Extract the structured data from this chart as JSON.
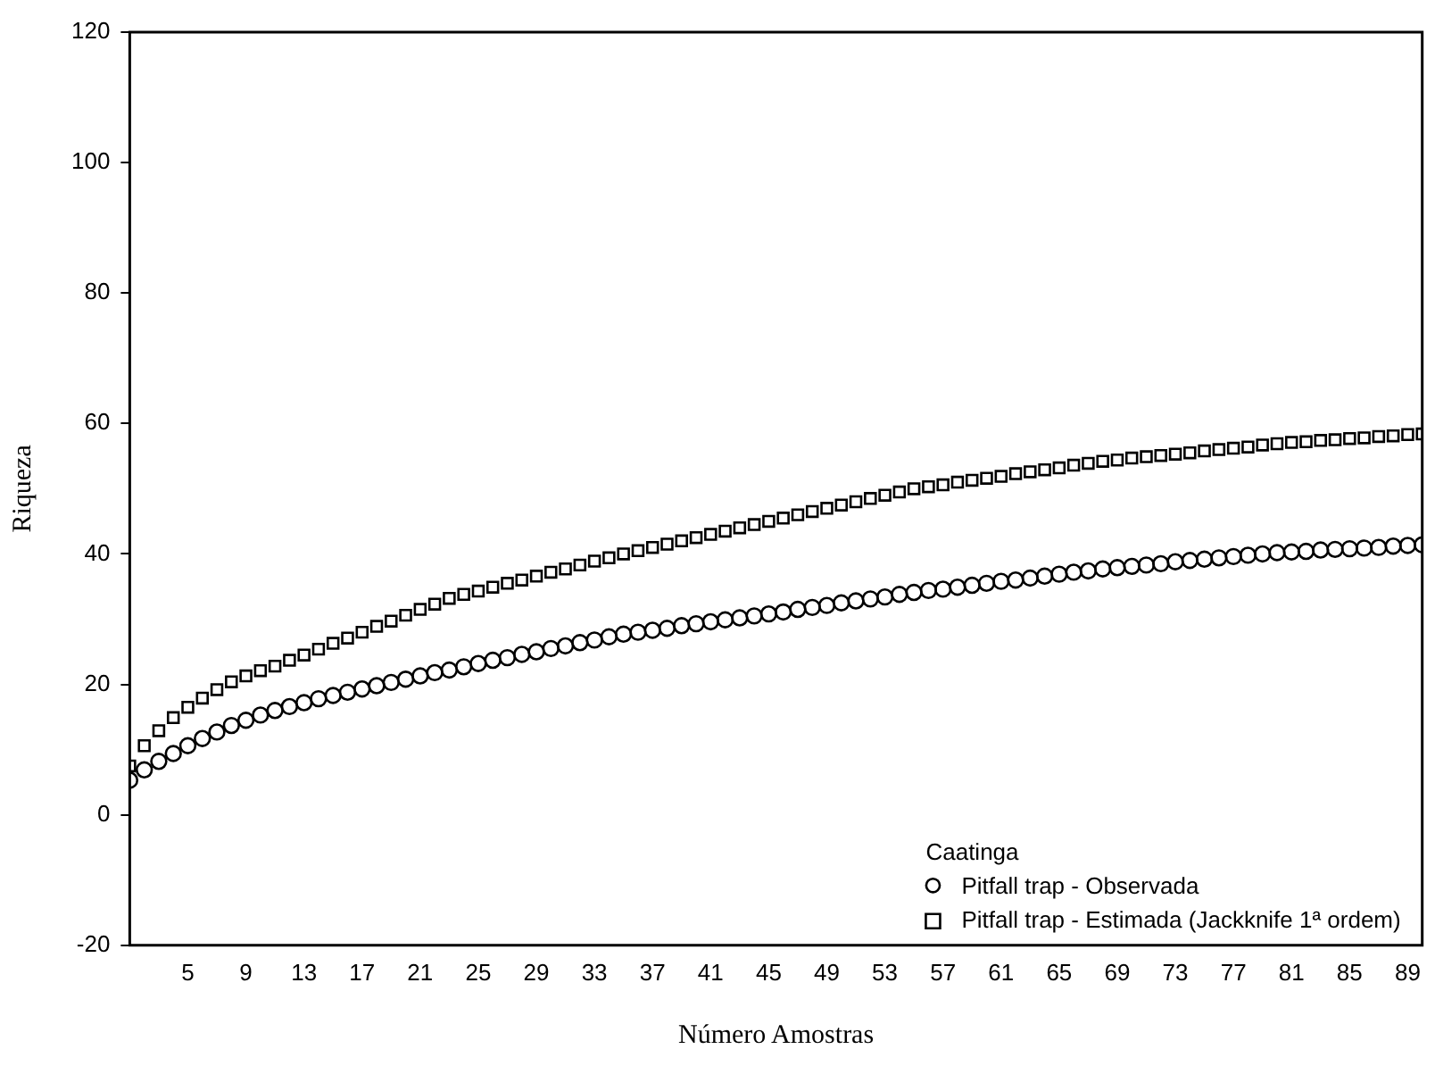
{
  "chart_data": {
    "type": "scatter",
    "xlabel": "Número Amostras",
    "ylabel": "Riqueza",
    "legend_title": "Caatinga",
    "legend": "bottom right",
    "grid": false,
    "xlim": [
      1,
      90
    ],
    "xticks": [
      5,
      9,
      13,
      17,
      21,
      25,
      29,
      33,
      37,
      41,
      45,
      49,
      53,
      57,
      61,
      65,
      69,
      73,
      77,
      81,
      85,
      89
    ],
    "ylim": [
      -20,
      120
    ],
    "yticks": [
      -20,
      0,
      20,
      40,
      60,
      80,
      100,
      120
    ],
    "x": [
      1,
      2,
      3,
      4,
      5,
      6,
      7,
      8,
      9,
      10,
      11,
      12,
      13,
      14,
      15,
      16,
      17,
      18,
      19,
      20,
      21,
      22,
      23,
      24,
      25,
      26,
      27,
      28,
      29,
      30,
      31,
      32,
      33,
      34,
      35,
      36,
      37,
      38,
      39,
      40,
      41,
      42,
      43,
      44,
      45,
      46,
      47,
      48,
      49,
      50,
      51,
      52,
      53,
      54,
      55,
      56,
      57,
      58,
      59,
      60,
      61,
      62,
      63,
      64,
      65,
      66,
      67,
      68,
      69,
      70,
      71,
      72,
      73,
      74,
      75,
      76,
      77,
      78,
      79,
      80,
      81,
      82,
      83,
      84,
      85,
      86,
      87,
      88,
      89,
      90
    ],
    "series": [
      {
        "name": "Pitfall trap - Observada",
        "color": "#000000",
        "marker": "circle",
        "values": [
          5.3,
          6.9,
          8.2,
          9.4,
          10.6,
          11.7,
          12.7,
          13.7,
          14.5,
          15.3,
          16.0,
          16.6,
          17.2,
          17.8,
          18.3,
          18.8,
          19.3,
          19.8,
          20.3,
          20.8,
          21.3,
          21.8,
          22.2,
          22.7,
          23.2,
          23.7,
          24.1,
          24.6,
          25.0,
          25.5,
          25.9,
          26.4,
          26.8,
          27.3,
          27.7,
          28.0,
          28.3,
          28.6,
          29.0,
          29.3,
          29.6,
          29.9,
          30.2,
          30.5,
          30.8,
          31.1,
          31.5,
          31.8,
          32.1,
          32.5,
          32.8,
          33.1,
          33.4,
          33.8,
          34.1,
          34.4,
          34.6,
          34.9,
          35.2,
          35.5,
          35.8,
          36.0,
          36.3,
          36.6,
          36.9,
          37.2,
          37.4,
          37.7,
          37.9,
          38.1,
          38.3,
          38.5,
          38.8,
          39.0,
          39.2,
          39.4,
          39.6,
          39.8,
          40.0,
          40.2,
          40.3,
          40.4,
          40.6,
          40.7,
          40.8,
          40.9,
          41.0,
          41.2,
          41.3,
          41.4
        ]
      },
      {
        "name": "Pitfall trap - Estimada (Jackknife 1ª ordem)",
        "color": "#000000",
        "marker": "square",
        "values": [
          7.5,
          10.6,
          12.9,
          14.9,
          16.5,
          17.9,
          19.2,
          20.4,
          21.3,
          22.1,
          22.8,
          23.7,
          24.5,
          25.4,
          26.3,
          27.1,
          28.0,
          28.9,
          29.7,
          30.6,
          31.5,
          32.3,
          33.2,
          33.8,
          34.3,
          34.9,
          35.5,
          36.0,
          36.6,
          37.2,
          37.7,
          38.3,
          38.9,
          39.4,
          40.0,
          40.5,
          41.0,
          41.5,
          42.0,
          42.5,
          43.0,
          43.5,
          44.0,
          44.5,
          45.0,
          45.5,
          46.0,
          46.5,
          47.0,
          47.5,
          48.0,
          48.5,
          49.0,
          49.5,
          50.0,
          50.3,
          50.6,
          51.0,
          51.3,
          51.6,
          51.9,
          52.3,
          52.6,
          52.9,
          53.2,
          53.6,
          53.9,
          54.2,
          54.4,
          54.7,
          54.9,
          55.1,
          55.3,
          55.5,
          55.8,
          56.0,
          56.2,
          56.4,
          56.7,
          56.9,
          57.1,
          57.2,
          57.4,
          57.5,
          57.7,
          57.8,
          58.0,
          58.1,
          58.3,
          58.4
        ]
      }
    ]
  }
}
